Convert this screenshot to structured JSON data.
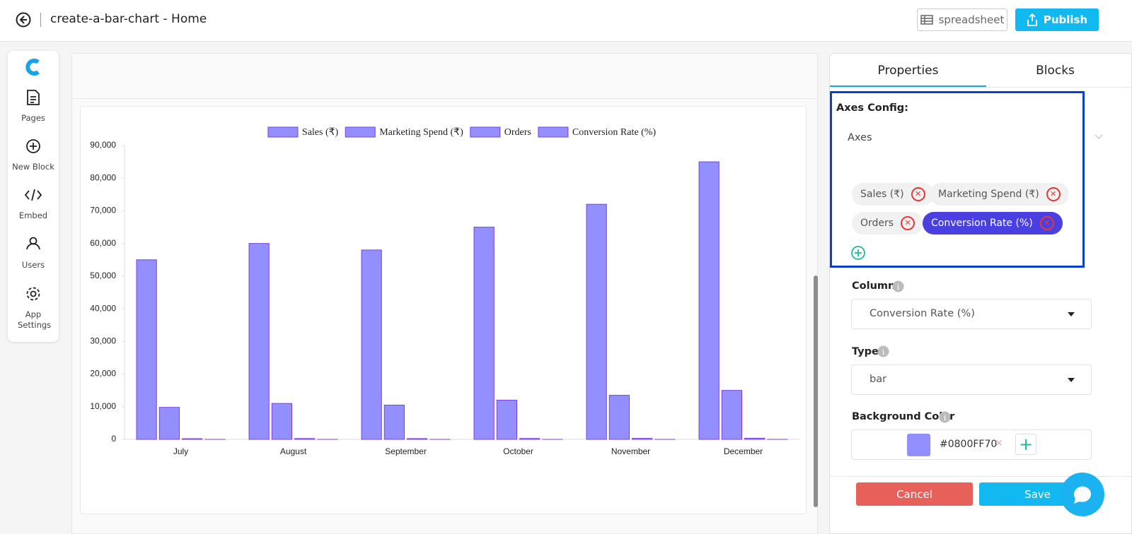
{
  "header": {
    "title": "create-a-bar-chart - Home",
    "spreadsheet": "spreadsheet",
    "publish": "Publish"
  },
  "sidebar": {
    "items": [
      "Pages",
      "New Block",
      "Embed",
      "Users",
      "App Settings"
    ]
  },
  "chart_data": {
    "type": "bar",
    "categories": [
      "July",
      "August",
      "September",
      "October",
      "November",
      "December"
    ],
    "series": [
      {
        "name": "Sales (₹)",
        "color": "#0800FF70",
        "values": [
          55000,
          60000,
          58000,
          65000,
          72000,
          85000
        ]
      },
      {
        "name": "Marketing Spend (₹)",
        "color": "#0800FF70",
        "values": [
          9800,
          11000,
          10500,
          12000,
          13500,
          15000
        ]
      },
      {
        "name": "Orders",
        "color": "#0800FF70",
        "values": [
          200,
          250,
          230,
          270,
          300,
          350
        ]
      },
      {
        "name": "Conversion Rate (%)",
        "color": "#0800FF70",
        "values": [
          3,
          3.2,
          3.1,
          3.4,
          3.6,
          4
        ]
      }
    ],
    "ylim": [
      0,
      90000
    ],
    "yticks": [
      0,
      {
        "value": 10000,
        "label": "10,000"
      },
      {
        "value": 20000,
        "label": "20,000"
      },
      {
        "value": 30000,
        "label": "30,000"
      },
      {
        "value": 40000,
        "label": "40,000"
      },
      {
        "value": 50000,
        "label": "50,000"
      },
      {
        "value": 60000,
        "label": "60,000"
      },
      {
        "value": 70000,
        "label": "70,000"
      },
      {
        "value": 80000,
        "label": "80,000"
      },
      {
        "value": 90000,
        "label": "90,000"
      }
    ],
    "legend": "top"
  },
  "panel": {
    "tabs": [
      "Properties",
      "Blocks"
    ],
    "axes_config": "Axes Config:",
    "axes_label": "Axes",
    "axes_chips": [
      "Sales (₹)",
      "Marketing Spend (₹)",
      "Orders",
      "Conversion Rate (%)"
    ],
    "column_label": "Column",
    "column_value": "Conversion Rate (%)",
    "type_label": "Type",
    "type_value": "bar",
    "bg_label": "Background Color",
    "bg_value": "#0800FF70",
    "cancel": "Cancel",
    "save": "Save"
  }
}
